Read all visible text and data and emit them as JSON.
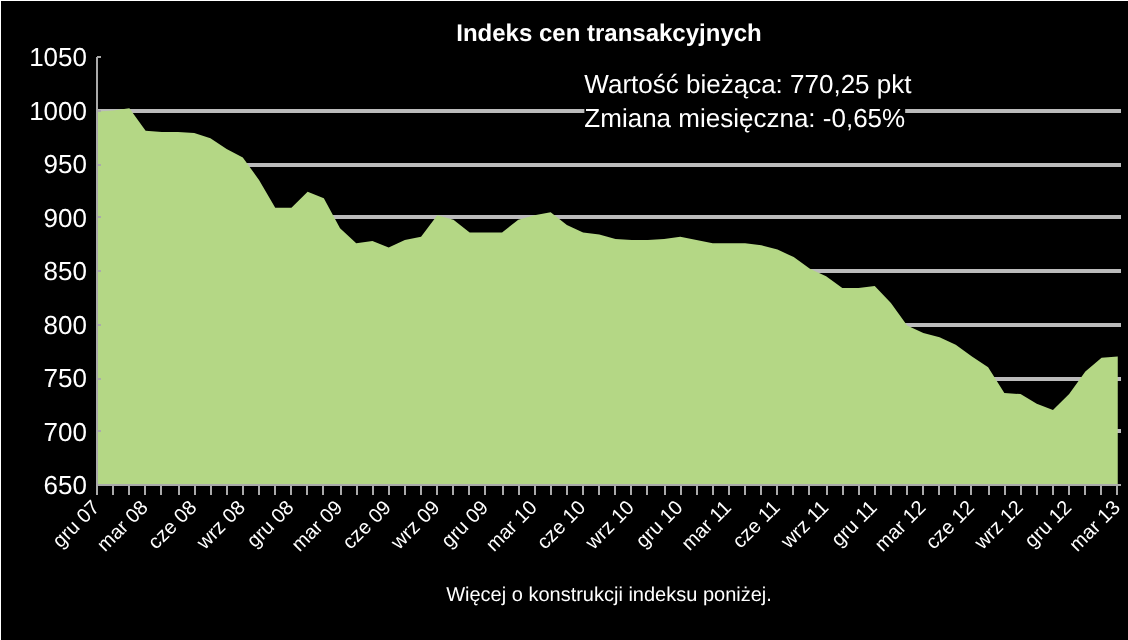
{
  "chart_data": {
    "type": "area",
    "title": "Indeks cen transakcyjnych",
    "categories": [
      "gru 07",
      null,
      null,
      "mar 08",
      null,
      null,
      "cze 08",
      null,
      null,
      "wrz 08",
      null,
      null,
      "gru 08",
      null,
      null,
      "mar 09",
      null,
      null,
      "cze 09",
      null,
      null,
      "wrz 09",
      null,
      null,
      "gru 09",
      null,
      null,
      "mar 10",
      null,
      null,
      "cze 10",
      null,
      null,
      "wrz 10",
      null,
      null,
      "gru 10",
      null,
      null,
      "mar 11",
      null,
      null,
      "cze 11",
      null,
      null,
      "wrz 11",
      null,
      null,
      "gru 11",
      null,
      null,
      "mar 12",
      null,
      null,
      "cze 12",
      null,
      null,
      "wrz 12",
      null,
      null,
      "gru 12",
      null,
      null,
      "mar 13"
    ],
    "series": [
      {
        "color": "#b4d785",
        "values": [
          999,
          1000,
          1002,
          981,
          980,
          980,
          979,
          974,
          964,
          956,
          935,
          909,
          909,
          924,
          918,
          890,
          876,
          878,
          872,
          879,
          882,
          902,
          898,
          886,
          886,
          886,
          898,
          902,
          905,
          893,
          886,
          884,
          880,
          879,
          879,
          880,
          882,
          879,
          876,
          876,
          876,
          874,
          870,
          863,
          852,
          845,
          834,
          834,
          836,
          820,
          799,
          792,
          788,
          781,
          770,
          760,
          736,
          735,
          726,
          720,
          735,
          756,
          769,
          770
        ]
      }
    ],
    "ylim": [
      650,
      1050
    ],
    "yticks": [
      650,
      700,
      750,
      800,
      850,
      900,
      950,
      1000,
      1050
    ],
    "grid": "y",
    "annotations": [
      "Wartość bieżąca: 770,25 pkt",
      "Zmiana miesięczna: -0,65%",
      "Więcej o konstrukcji indeksu poniżej."
    ]
  }
}
